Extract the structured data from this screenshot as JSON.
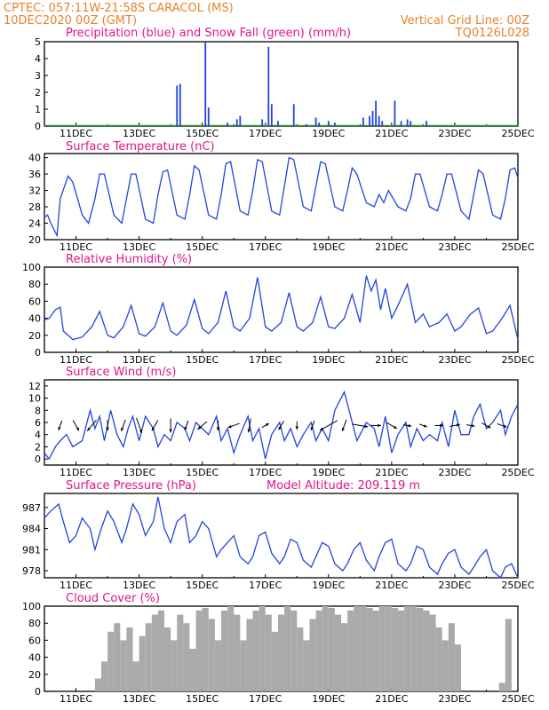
{
  "header": {
    "left1": "CPTEC:  057:11W-21:58S  CARACOL (MS)",
    "left2": "10DEC2020 00Z (GMT)",
    "right1": "Vertical Grid Line: 00Z",
    "right2": "TQ0126L028"
  },
  "colors": {
    "header": "#e8822a",
    "title": "#e0148c",
    "line": "#2244dd",
    "snow": "#22aa22",
    "cloud": "#aaaaaa"
  },
  "chart_data": [
    {
      "id": "precip",
      "type": "bar",
      "title": "Precipitation (blue) and Snow Fall (green) (mm/h)",
      "x_tick_labels": [
        "11DEC",
        "13DEC",
        "15DEC",
        "17DEC",
        "19DEC",
        "21DEC",
        "23DEC",
        "25DEC"
      ],
      "xlim_days": [
        10.0,
        25.0
      ],
      "ylim": [
        0,
        5
      ],
      "y_ticks": [
        0,
        1,
        2,
        3,
        4,
        5
      ],
      "series": [
        {
          "name": "Precipitation",
          "x": [
            14.2,
            14.3,
            15.1,
            15.2,
            15.8,
            16.1,
            16.2,
            16.9,
            17.1,
            17.2,
            17.4,
            17.9,
            18.3,
            18.6,
            18.7,
            19.0,
            19.2,
            20.1,
            20.3,
            20.4,
            20.5,
            20.6,
            20.7,
            21.1,
            21.3,
            21.5,
            21.6,
            22.1
          ],
          "values": [
            2.4,
            2.5,
            5.0,
            1.1,
            0.2,
            0.4,
            0.6,
            0.4,
            4.7,
            1.3,
            0.3,
            1.3,
            0.1,
            0.5,
            0.2,
            0.3,
            0.2,
            0.5,
            0.6,
            0.9,
            1.5,
            0.6,
            0.3,
            1.5,
            0.3,
            0.4,
            0.3,
            0.3
          ]
        }
      ]
    },
    {
      "id": "temp",
      "type": "line",
      "title": "Surface Temperature (nC)",
      "x_tick_labels": [
        "11DEC",
        "13DEC",
        "15DEC",
        "17DEC",
        "19DEC",
        "21DEC",
        "23DEC",
        "25DEC"
      ],
      "xlim_days": [
        10.0,
        25.0
      ],
      "ylim": [
        20,
        41
      ],
      "y_ticks": [
        20,
        24,
        28,
        32,
        36,
        40
      ],
      "x": [
        10.0,
        10.1,
        10.2,
        10.4,
        10.5,
        10.75,
        10.9,
        11.2,
        11.4,
        11.6,
        11.75,
        11.9,
        12.2,
        12.45,
        12.6,
        12.75,
        12.9,
        13.2,
        13.45,
        13.6,
        13.75,
        13.9,
        14.2,
        14.45,
        14.6,
        14.75,
        14.9,
        15.2,
        15.45,
        15.6,
        15.75,
        15.9,
        16.2,
        16.45,
        16.6,
        16.75,
        16.9,
        17.2,
        17.45,
        17.6,
        17.75,
        17.9,
        18.2,
        18.45,
        18.6,
        18.75,
        18.9,
        19.2,
        19.45,
        19.6,
        19.75,
        19.9,
        20.2,
        20.45,
        20.6,
        20.75,
        20.9,
        21.2,
        21.45,
        21.6,
        21.75,
        21.9,
        22.2,
        22.45,
        22.6,
        22.75,
        22.9,
        23.2,
        23.45,
        23.6,
        23.75,
        23.9,
        24.2,
        24.45,
        24.6,
        24.75,
        24.9,
        25.0
      ],
      "values": [
        25.5,
        26,
        24,
        21,
        30,
        35.5,
        34,
        26,
        24,
        30,
        36,
        36,
        26,
        24,
        30,
        36,
        36,
        25,
        24,
        31,
        36.5,
        37,
        26,
        25,
        31,
        38,
        37,
        26,
        25,
        31,
        38.5,
        39,
        27,
        26,
        32,
        39.5,
        39,
        27,
        26,
        33,
        40,
        39.5,
        28,
        27,
        33,
        39,
        38.5,
        28,
        27,
        32,
        37.5,
        36,
        29,
        28,
        31,
        29,
        32,
        28,
        27,
        30,
        36,
        36,
        28,
        27,
        31,
        36,
        36,
        27,
        25,
        31,
        37,
        36,
        26,
        25,
        30,
        37,
        37.5,
        35
      ]
    },
    {
      "id": "rh",
      "type": "line",
      "title": "Relative Humidity (%)",
      "x_tick_labels": [
        "11DEC",
        "13DEC",
        "15DEC",
        "17DEC",
        "19DEC",
        "21DEC",
        "23DEC",
        "25DEC"
      ],
      "xlim_days": [
        10.0,
        25.0
      ],
      "ylim": [
        0,
        100
      ],
      "y_ticks": [
        0,
        20,
        40,
        60,
        80,
        100
      ],
      "x": [
        10.0,
        10.15,
        10.35,
        10.5,
        10.6,
        10.9,
        11.2,
        11.5,
        11.75,
        12.0,
        12.2,
        12.5,
        12.75,
        13.0,
        13.2,
        13.5,
        13.75,
        14.0,
        14.2,
        14.5,
        14.75,
        15.0,
        15.2,
        15.5,
        15.75,
        16.0,
        16.2,
        16.5,
        16.75,
        17.0,
        17.2,
        17.5,
        17.75,
        18.0,
        18.2,
        18.5,
        18.75,
        19.0,
        19.2,
        19.5,
        19.75,
        20.0,
        20.2,
        20.35,
        20.5,
        20.65,
        20.8,
        21.0,
        21.2,
        21.5,
        21.75,
        22.0,
        22.2,
        22.5,
        22.75,
        23.0,
        23.2,
        23.5,
        23.75,
        24.0,
        24.2,
        24.5,
        24.75,
        25.0
      ],
      "values": [
        38,
        40,
        50,
        53,
        25,
        15,
        18,
        30,
        48,
        20,
        17,
        30,
        55,
        22,
        19,
        30,
        58,
        25,
        20,
        32,
        62,
        28,
        22,
        35,
        72,
        30,
        25,
        40,
        88,
        30,
        25,
        35,
        70,
        30,
        25,
        35,
        65,
        30,
        28,
        40,
        68,
        35,
        90,
        72,
        85,
        50,
        75,
        40,
        55,
        80,
        35,
        45,
        30,
        35,
        45,
        25,
        30,
        45,
        52,
        22,
        25,
        40,
        55,
        15
      ]
    },
    {
      "id": "wind",
      "type": "line",
      "title": "Surface Wind (m/s)",
      "x_tick_labels": [
        "11DEC",
        "13DEC",
        "15DEC",
        "17DEC",
        "19DEC",
        "21DEC",
        "23DEC",
        "25DEC"
      ],
      "xlim_days": [
        10.0,
        25.0
      ],
      "ylim": [
        -1,
        13
      ],
      "y_ticks": [
        0,
        2,
        4,
        6,
        8,
        10,
        12
      ],
      "x": [
        10.0,
        10.15,
        10.35,
        10.5,
        10.7,
        10.9,
        11.2,
        11.45,
        11.6,
        11.75,
        11.9,
        12.1,
        12.3,
        12.5,
        12.65,
        12.8,
        13.0,
        13.2,
        13.45,
        13.6,
        13.8,
        14.0,
        14.2,
        14.45,
        14.6,
        14.8,
        15.0,
        15.2,
        15.45,
        15.6,
        15.8,
        16.0,
        16.2,
        16.45,
        16.6,
        16.8,
        17.0,
        17.2,
        17.45,
        17.6,
        17.8,
        18.0,
        18.2,
        18.45,
        18.6,
        18.8,
        19.0,
        19.2,
        19.4,
        19.5,
        19.7,
        19.9,
        20.2,
        20.45,
        20.6,
        20.8,
        21.0,
        21.2,
        21.45,
        21.6,
        21.8,
        22.0,
        22.2,
        22.45,
        22.6,
        22.8,
        23.0,
        23.2,
        23.45,
        23.6,
        23.8,
        24.0,
        24.2,
        24.45,
        24.6,
        24.8,
        25.0
      ],
      "values": [
        1,
        0,
        2,
        3,
        4,
        2,
        3,
        8,
        5,
        7,
        3,
        8,
        4,
        2,
        5,
        7,
        3,
        7,
        5,
        2,
        4,
        3,
        6,
        5,
        3,
        6,
        5,
        4,
        7,
        3,
        5,
        1,
        4,
        7,
        3,
        5,
        0,
        4,
        6,
        3,
        5,
        2,
        4,
        6,
        3,
        5,
        3,
        8,
        10,
        11,
        7,
        3,
        6,
        5,
        2,
        7,
        1,
        4,
        6,
        2,
        5,
        3,
        4,
        3,
        6,
        2,
        8,
        4,
        4,
        7,
        9,
        5,
        6,
        8,
        4,
        7,
        9
      ],
      "arrow_days": [
        10.5,
        11.0,
        11.5,
        12.0,
        12.5,
        13.0,
        13.5,
        14.0,
        14.5,
        15.0,
        15.5,
        16.0,
        16.5,
        17.0,
        17.5,
        18.0,
        18.5,
        19.0,
        19.5,
        20.0,
        20.5,
        21.0,
        21.5,
        22.0,
        22.5,
        23.0,
        23.5,
        24.0,
        24.5
      ],
      "arrow_dirs_deg": [
        200,
        150,
        220,
        180,
        200,
        160,
        210,
        180,
        200,
        230,
        180,
        250,
        190,
        60,
        210,
        180,
        200,
        240,
        200,
        100,
        90,
        120,
        100,
        110,
        90,
        80,
        100,
        120,
        110
      ],
      "arrow_speeds": [
        3,
        4,
        5,
        3,
        4,
        6,
        4,
        5,
        3,
        4,
        3,
        4,
        5,
        2,
        3,
        2,
        3,
        8,
        4,
        6,
        3,
        4,
        2,
        2,
        2,
        3,
        2,
        3,
        3
      ]
    },
    {
      "id": "pressure",
      "type": "line",
      "title": "Surface Pressure (hPa)",
      "annotation": "Model Altitude: 209.119 m",
      "x_tick_labels": [
        "11DEC",
        "13DEC",
        "15DEC",
        "17DEC",
        "19DEC",
        "21DEC",
        "23DEC",
        "25DEC"
      ],
      "xlim_days": [
        10.0,
        25.0
      ],
      "ylim": [
        977.0,
        989.0
      ],
      "y_ticks": [
        978,
        981,
        984,
        987
      ],
      "x": [
        10.0,
        10.2,
        10.45,
        10.6,
        10.8,
        11.0,
        11.2,
        11.45,
        11.6,
        11.8,
        12.0,
        12.2,
        12.45,
        12.6,
        12.8,
        13.0,
        13.2,
        13.45,
        13.6,
        13.8,
        14.0,
        14.2,
        14.45,
        14.6,
        14.8,
        15.0,
        15.2,
        15.45,
        15.6,
        15.8,
        16.0,
        16.2,
        16.45,
        16.6,
        16.8,
        17.0,
        17.2,
        17.45,
        17.6,
        17.8,
        18.0,
        18.2,
        18.45,
        18.6,
        18.8,
        19.0,
        19.2,
        19.45,
        19.6,
        19.8,
        20.0,
        20.2,
        20.45,
        20.6,
        20.8,
        21.0,
        21.2,
        21.45,
        21.6,
        21.8,
        22.0,
        22.2,
        22.45,
        22.6,
        22.8,
        23.0,
        23.2,
        23.45,
        23.6,
        23.8,
        24.0,
        24.2,
        24.45,
        24.6,
        24.8,
        25.0
      ],
      "values": [
        985.5,
        986.5,
        987.5,
        985,
        982,
        983,
        985.5,
        984,
        981,
        984,
        986.5,
        985,
        982,
        984,
        987.5,
        986,
        983,
        985,
        988.5,
        984,
        982,
        985,
        986,
        982,
        983,
        985,
        984,
        980,
        981,
        982,
        983,
        980,
        979,
        980,
        983,
        983.5,
        980.5,
        979,
        980,
        982.5,
        982,
        979.5,
        978.5,
        980,
        982,
        981.5,
        979,
        978,
        979,
        981,
        982,
        979.5,
        978,
        980,
        982,
        982.5,
        979,
        978,
        979,
        981.5,
        981,
        978.5,
        977.5,
        979,
        980.5,
        981,
        978.5,
        977.5,
        978.5,
        980,
        981,
        978,
        977,
        978.5,
        979,
        977
      ]
    },
    {
      "id": "cloud",
      "type": "bar",
      "title": "Cloud Cover (%)",
      "x_tick_labels": [
        "11DEC",
        "13DEC",
        "15DEC",
        "17DEC",
        "19DEC",
        "21DEC",
        "23DEC",
        "25DEC"
      ],
      "xlim_days": [
        10.0,
        25.0
      ],
      "ylim": [
        0,
        100
      ],
      "y_ticks": [
        0,
        20,
        40,
        60,
        80,
        100
      ],
      "x": [
        11.7,
        11.9,
        12.1,
        12.3,
        12.5,
        12.7,
        12.9,
        13.1,
        13.3,
        13.5,
        13.7,
        13.9,
        14.1,
        14.3,
        14.5,
        14.7,
        14.9,
        15.1,
        15.3,
        15.5,
        15.7,
        15.9,
        16.1,
        16.3,
        16.5,
        16.7,
        16.9,
        17.1,
        17.3,
        17.5,
        17.7,
        17.9,
        18.1,
        18.3,
        18.5,
        18.7,
        18.9,
        19.1,
        19.3,
        19.5,
        19.7,
        19.9,
        20.1,
        20.3,
        20.5,
        20.7,
        20.9,
        21.1,
        21.3,
        21.5,
        21.7,
        21.9,
        22.1,
        22.3,
        22.5,
        22.7,
        22.9,
        23.1,
        24.5,
        24.7
      ],
      "values": [
        15,
        35,
        70,
        80,
        60,
        75,
        35,
        65,
        80,
        90,
        95,
        75,
        60,
        90,
        80,
        50,
        95,
        98,
        85,
        60,
        95,
        100,
        90,
        60,
        85,
        95,
        100,
        90,
        70,
        90,
        100,
        95,
        75,
        60,
        85,
        95,
        100,
        98,
        90,
        80,
        95,
        100,
        100,
        98,
        95,
        100,
        100,
        98,
        95,
        100,
        100,
        98,
        95,
        90,
        75,
        60,
        80,
        55,
        10,
        85
      ]
    }
  ]
}
